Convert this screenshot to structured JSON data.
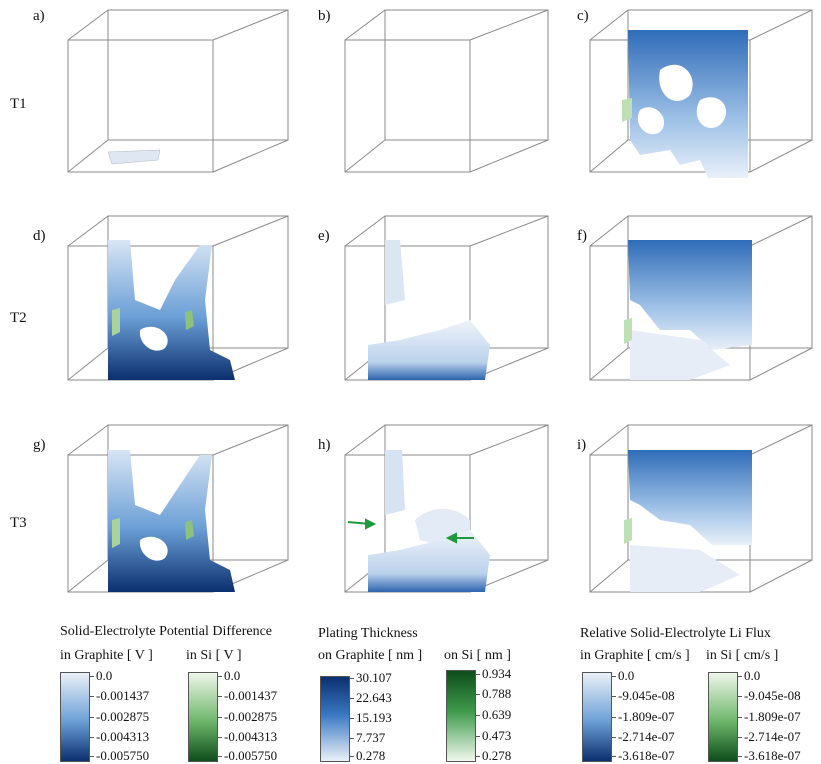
{
  "panels": [
    "a)",
    "b)",
    "c)",
    "d)",
    "e)",
    "f)",
    "g)",
    "h)",
    "i)"
  ],
  "rows": [
    "T1",
    "T2",
    "T3"
  ],
  "legends": {
    "potential": {
      "title": "Solid-Electrolyte Potential Difference",
      "graphite_label": "in Graphite [ V ]",
      "si_label": "in Si [ V ]",
      "graphite_ticks": [
        "0.0",
        "-0.001437",
        "-0.002875",
        "-0.004313",
        "-0.005750"
      ],
      "si_ticks": [
        "0.0",
        "-0.001437",
        "-0.002875",
        "-0.004313",
        "-0.005750"
      ]
    },
    "plating": {
      "title": "Plating Thickness",
      "graphite_label": "on Graphite [ nm ]",
      "si_label": "on Si [ nm ]",
      "graphite_ticks": [
        "30.107",
        "22.643",
        "15.193",
        "7.737",
        "0.278"
      ],
      "si_ticks": [
        "0.934",
        "0.788",
        "0.639",
        "0.473",
        "0.278"
      ]
    },
    "flux": {
      "title": "Relative Solid-Electrolyte Li Flux",
      "graphite_label": "in Graphite [ cm/s ]",
      "si_label": "in Si [ cm/s ]",
      "graphite_ticks": [
        "0.0",
        "-9.045e-08",
        "-1.809e-07",
        "-2.714e-07",
        "-3.618e-07"
      ],
      "si_ticks": [
        "0.0",
        "-9.045e-08",
        "-1.809e-07",
        "-2.714e-07",
        "-3.618e-07"
      ]
    }
  },
  "colors": {
    "blue_light": "#e6edf7",
    "blue_mid": "#5a93cf",
    "blue_dark": "#0b2f6e",
    "green_light": "#eef6ea",
    "green_mid": "#6eb66b",
    "green_dark": "#0e4d1c",
    "arrow": "#1f9a3a"
  }
}
